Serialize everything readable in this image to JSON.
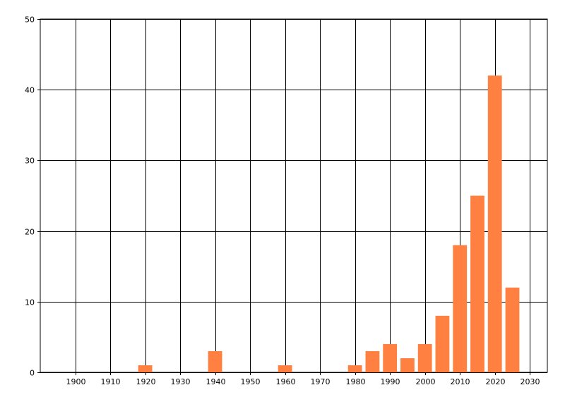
{
  "chart_data": {
    "type": "bar",
    "title": "",
    "xlabel": "",
    "ylabel": "",
    "xlim": [
      1890,
      2035
    ],
    "ylim": [
      0,
      50
    ],
    "xticks": [
      1900,
      1910,
      1920,
      1930,
      1940,
      1950,
      1960,
      1970,
      1980,
      1990,
      2000,
      2010,
      2020,
      2030
    ],
    "yticks": [
      0,
      10,
      20,
      30,
      40,
      50
    ],
    "grid": true,
    "bar_color": "#FF8040",
    "x": [
      1920,
      1940,
      1960,
      1980,
      1985,
      1990,
      1995,
      2000,
      2005,
      2010,
      2015,
      2020,
      2025
    ],
    "values": [
      1,
      3,
      1,
      1,
      3,
      4,
      2,
      4,
      8,
      18,
      25,
      42,
      12
    ]
  }
}
